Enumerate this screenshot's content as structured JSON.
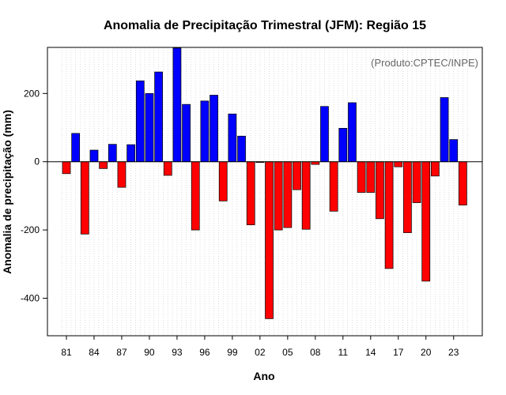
{
  "chart_data": {
    "type": "bar",
    "title": "Anomalia de Precipitação Trimestral (JFM): Região 15",
    "xlabel": "Ano",
    "ylabel": "Anomalia de precipitação (mm)",
    "annotation": "(Produto:CPTEC/INPE)",
    "ylim": [
      -510,
      335
    ],
    "y_ticks": [
      -400,
      -200,
      0,
      200
    ],
    "y_tick_labels": [
      "-400",
      "-200",
      "0",
      "200"
    ],
    "categories": [
      "1981",
      "1982",
      "1983",
      "1984",
      "1985",
      "1986",
      "1987",
      "1988",
      "1989",
      "1990",
      "1991",
      "1992",
      "1993",
      "1994",
      "1995",
      "1996",
      "1997",
      "1998",
      "1999",
      "2000",
      "2001",
      "2002",
      "2003",
      "2004",
      "2005",
      "2006",
      "2007",
      "2008",
      "2009",
      "2010",
      "2011",
      "2012",
      "2013",
      "2014",
      "2015",
      "2016",
      "2017",
      "2018",
      "2019",
      "2020",
      "2021",
      "2022",
      "2023",
      "2024"
    ],
    "x_tick_labels": [
      "81",
      "84",
      "87",
      "90",
      "93",
      "96",
      "99",
      "02",
      "05",
      "08",
      "11",
      "14",
      "17",
      "20",
      "23"
    ],
    "values": [
      -35,
      83,
      -212,
      34,
      -20,
      51,
      -75,
      50,
      237,
      200,
      263,
      -40,
      333,
      168,
      -200,
      178,
      195,
      -115,
      140,
      75,
      -185,
      -2,
      -460,
      -200,
      -193,
      -82,
      -198,
      -8,
      162,
      -145,
      98,
      173,
      -90,
      -90,
      -167,
      -313,
      -15,
      -208,
      -120,
      -350,
      -42,
      188,
      65,
      -127
    ],
    "grid": "vertical-dotted",
    "colors": {
      "positive": "#0000ff",
      "negative": "#ff0000",
      "edge": "#000000",
      "grid": "#d3d3d3",
      "credit": "#666666"
    }
  }
}
